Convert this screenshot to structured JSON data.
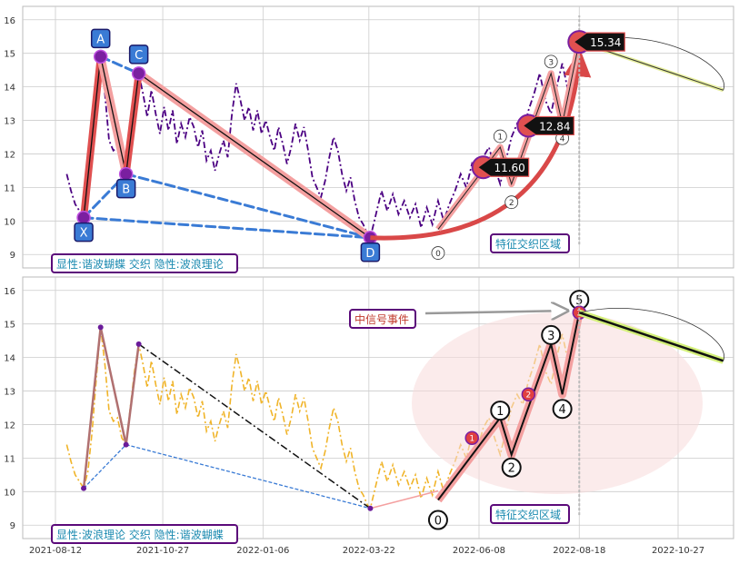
{
  "chart_data": [
    {
      "type": "line",
      "panel": "top",
      "ylim": [
        8.6,
        16.4
      ],
      "yticks": [
        9,
        10,
        11,
        12,
        13,
        14,
        15,
        16
      ],
      "grid": true,
      "price_series": {
        "style": "dash-dot",
        "color": "#4b0082",
        "points": [
          [
            "2021-08-20",
            11.4
          ],
          [
            "2021-08-23",
            10.9
          ],
          [
            "2021-08-26",
            10.5
          ],
          [
            "2021-08-29",
            10.3
          ],
          [
            "2021-09-01",
            10.1
          ],
          [
            "2021-09-04",
            10.6
          ],
          [
            "2021-09-07",
            11.8
          ],
          [
            "2021-09-10",
            13.4
          ],
          [
            "2021-09-13",
            14.9
          ],
          [
            "2021-09-16",
            13.8
          ],
          [
            "2021-09-19",
            12.4
          ],
          [
            "2021-09-22",
            12.1
          ],
          [
            "2021-09-25",
            12.2
          ],
          [
            "2021-09-28",
            11.6
          ],
          [
            "2021-10-01",
            11.4
          ],
          [
            "2021-10-04",
            12.5
          ],
          [
            "2021-10-07",
            13.6
          ],
          [
            "2021-10-10",
            14.4
          ],
          [
            "2021-10-13",
            13.8
          ],
          [
            "2021-10-16",
            13.1
          ],
          [
            "2021-10-19",
            13.9
          ],
          [
            "2021-10-22",
            13.2
          ],
          [
            "2021-10-25",
            12.6
          ],
          [
            "2021-10-28",
            13.4
          ],
          [
            "2021-10-31",
            12.7
          ],
          [
            "2021-11-03",
            13.3
          ],
          [
            "2021-11-06",
            12.3
          ],
          [
            "2021-11-09",
            12.9
          ],
          [
            "2021-11-12",
            12.5
          ],
          [
            "2021-11-15",
            13.1
          ],
          [
            "2021-11-18",
            12.8
          ],
          [
            "2021-11-21",
            12.2
          ],
          [
            "2021-11-24",
            12.7
          ],
          [
            "2021-11-27",
            11.8
          ],
          [
            "2021-11-30",
            12.1
          ],
          [
            "2021-12-03",
            11.5
          ],
          [
            "2021-12-06",
            12.0
          ],
          [
            "2021-12-09",
            12.4
          ],
          [
            "2021-12-12",
            11.9
          ],
          [
            "2021-12-15",
            13.2
          ],
          [
            "2021-12-18",
            14.1
          ],
          [
            "2021-12-21",
            13.6
          ],
          [
            "2021-12-24",
            13.0
          ],
          [
            "2021-12-27",
            13.4
          ],
          [
            "2021-12-30",
            12.7
          ],
          [
            "2022-01-02",
            13.3
          ],
          [
            "2022-01-05",
            12.6
          ],
          [
            "2022-01-08",
            13.0
          ],
          [
            "2022-01-11",
            12.5
          ],
          [
            "2022-01-14",
            12.1
          ],
          [
            "2022-01-17",
            12.8
          ],
          [
            "2022-01-20",
            12.3
          ],
          [
            "2022-01-23",
            11.7
          ],
          [
            "2022-01-26",
            12.2
          ],
          [
            "2022-01-29",
            12.9
          ],
          [
            "2022-02-01",
            12.4
          ],
          [
            "2022-02-04",
            12.8
          ],
          [
            "2022-02-07",
            12.1
          ],
          [
            "2022-02-10",
            11.3
          ],
          [
            "2022-02-13",
            11.0
          ],
          [
            "2022-02-16",
            10.7
          ],
          [
            "2022-02-19",
            11.2
          ],
          [
            "2022-02-22",
            11.9
          ],
          [
            "2022-02-25",
            12.5
          ],
          [
            "2022-02-28",
            12.1
          ],
          [
            "2022-03-03",
            11.4
          ],
          [
            "2022-03-06",
            10.9
          ],
          [
            "2022-03-09",
            11.3
          ],
          [
            "2022-03-12",
            10.6
          ],
          [
            "2022-03-15",
            10.1
          ],
          [
            "2022-03-18",
            9.9
          ],
          [
            "2022-03-21",
            9.6
          ],
          [
            "2022-03-23",
            9.5
          ],
          [
            "2022-03-27",
            10.2
          ],
          [
            "2022-03-31",
            10.9
          ],
          [
            "2022-04-04",
            10.3
          ],
          [
            "2022-04-08",
            10.8
          ],
          [
            "2022-04-12",
            10.2
          ],
          [
            "2022-04-16",
            10.6
          ],
          [
            "2022-04-20",
            10.1
          ],
          [
            "2022-04-24",
            10.5
          ],
          [
            "2022-04-28",
            9.8
          ],
          [
            "2022-05-02",
            10.4
          ],
          [
            "2022-05-06",
            9.9
          ],
          [
            "2022-05-10",
            10.6
          ],
          [
            "2022-05-14",
            10.0
          ],
          [
            "2022-05-18",
            10.5
          ],
          [
            "2022-05-22",
            10.9
          ],
          [
            "2022-05-26",
            11.4
          ],
          [
            "2022-05-30",
            11.0
          ],
          [
            "2022-06-03",
            11.7
          ],
          [
            "2022-06-07",
            11.3
          ],
          [
            "2022-06-11",
            11.9
          ],
          [
            "2022-06-15",
            12.2
          ],
          [
            "2022-06-19",
            11.6
          ],
          [
            "2022-06-23",
            11.1
          ],
          [
            "2022-06-27",
            11.8
          ],
          [
            "2022-07-01",
            12.5
          ],
          [
            "2022-07-05",
            12.9
          ],
          [
            "2022-07-09",
            12.6
          ],
          [
            "2022-07-13",
            13.3
          ],
          [
            "2022-07-17",
            13.8
          ],
          [
            "2022-07-21",
            14.4
          ],
          [
            "2022-07-25",
            13.6
          ],
          [
            "2022-07-29",
            13.2
          ],
          [
            "2022-08-02",
            14.0
          ],
          [
            "2022-08-06",
            14.7
          ],
          [
            "2022-08-10",
            13.9
          ],
          [
            "2022-08-14",
            14.5
          ],
          [
            "2022-08-18",
            15.3
          ]
        ]
      },
      "harmonic_pattern": {
        "points": [
          {
            "label": "X",
            "date": "2021-09-01",
            "value": 10.1
          },
          {
            "label": "A",
            "date": "2021-09-13",
            "value": 14.9
          },
          {
            "label": "B",
            "date": "2021-10-01",
            "value": 11.4
          },
          {
            "label": "C",
            "date": "2021-10-10",
            "value": 14.4
          },
          {
            "label": "D",
            "date": "2022-03-23",
            "value": 9.5
          }
        ]
      },
      "wave_points": [
        {
          "label": "0",
          "date": "2022-05-10",
          "value": 9.75
        },
        {
          "label": "1",
          "date": "2022-06-23",
          "value": 12.2
        },
        {
          "label": "2",
          "date": "2022-07-01",
          "value": 11.1
        },
        {
          "label": "3",
          "date": "2022-07-29",
          "value": 14.4
        },
        {
          "label": "4",
          "date": "2022-08-06",
          "value": 12.9
        },
        {
          "label": "5",
          "date": "2022-08-18",
          "value": 15.34
        }
      ],
      "price_callouts": [
        {
          "date": "2022-06-11",
          "value": 11.6,
          "text": "11.60"
        },
        {
          "date": "2022-07-13",
          "value": 12.84,
          "text": "12.84"
        },
        {
          "date": "2022-08-18",
          "value": 15.34,
          "text": "15.34"
        }
      ],
      "projection": {
        "from": [
          "2022-08-18",
          15.34
        ],
        "to": [
          "2022-11-28",
          13.9
        ]
      },
      "caption": "显性:谐波蝴蝶 交织 隐性:波浪理论",
      "zone_label": "特征交织区域"
    },
    {
      "type": "line",
      "panel": "bottom",
      "ylim": [
        8.6,
        16.4
      ],
      "yticks": [
        9,
        10,
        11,
        12,
        13,
        14,
        15,
        16
      ],
      "xticks": [
        "2021-08-12",
        "2021-10-27",
        "2022-01-06",
        "2022-03-22",
        "2022-06-08",
        "2022-08-18",
        "2022-10-27"
      ],
      "grid": true,
      "price_series_color": "#f0b429",
      "wave_points": [
        {
          "label": "0",
          "date": "2022-05-10",
          "value": 9.75
        },
        {
          "label": "1",
          "date": "2022-06-23",
          "value": 12.2
        },
        {
          "label": "2",
          "date": "2022-07-01",
          "value": 11.1
        },
        {
          "label": "3",
          "date": "2022-07-29",
          "value": 14.4
        },
        {
          "label": "4",
          "date": "2022-08-06",
          "value": 12.9
        },
        {
          "label": "5",
          "date": "2022-08-18",
          "value": 15.34
        }
      ],
      "red_markers": [
        {
          "label": "1",
          "date": "2022-06-03",
          "value": 11.6
        },
        {
          "label": "2",
          "date": "2022-07-13",
          "value": 12.9
        },
        {
          "label": "3",
          "date": "2022-08-18",
          "value": 15.34
        }
      ],
      "event_label": "中信号事件",
      "caption": "显性:波浪理论 交织 隐性:谐波蝴蝶",
      "zone_label": "特征交织区域"
    }
  ],
  "colors": {
    "grid": "#cccccc",
    "label_purple": "#5b0a7a",
    "label_blue": "#2f6fd6",
    "pattern_red": "#e57373",
    "arrow_red": "#d94848",
    "caption_teal": "#1b8ab0",
    "event_red": "#c0392b"
  }
}
